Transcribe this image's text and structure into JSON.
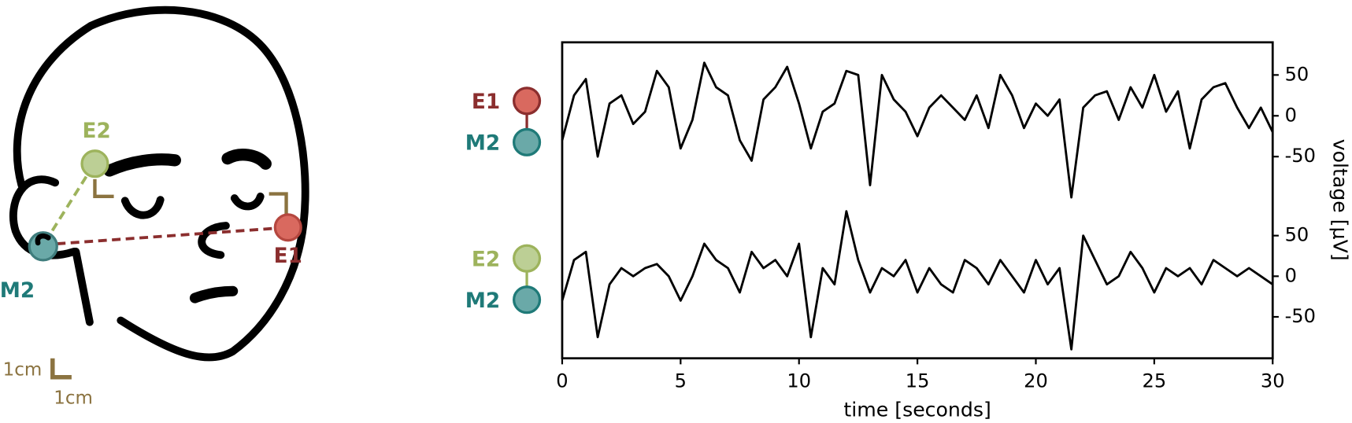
{
  "diagram": {
    "electrodes": [
      "E1",
      "E2",
      "M2"
    ],
    "scale": [
      "1cm",
      "1cm"
    ]
  },
  "chart_data": [
    {
      "type": "line",
      "xlim": [
        0,
        30
      ],
      "ylim": [
        -103,
        90
      ],
      "yticks": [
        50,
        0,
        -50
      ],
      "ylabel": "voltage [μV]",
      "channels": [
        {
          "label": "E1",
          "color": "#d9695f",
          "label_color": "#8b2e2e"
        },
        {
          "label": "M2",
          "color": "#6aa9a8",
          "label_color": "#1f7a78"
        }
      ],
      "link_color": "#8b2e2e",
      "x": [
        0,
        0.5,
        1,
        1.5,
        2,
        2.5,
        3,
        3.5,
        4,
        4.5,
        5,
        5.5,
        6,
        6.5,
        7,
        7.5,
        8,
        8.5,
        9,
        9.5,
        10,
        10.5,
        11,
        11.5,
        12,
        12.5,
        13,
        13.5,
        14,
        14.5,
        15,
        15.5,
        16,
        16.5,
        17,
        17.5,
        18,
        18.5,
        19,
        19.5,
        20,
        20.5,
        21,
        21.5,
        22,
        22.5,
        23,
        23.5,
        24,
        24.5,
        25,
        25.5,
        26,
        26.5,
        27,
        27.5,
        28,
        28.5,
        29,
        29.5,
        30
      ],
      "series": [
        {
          "color": "#000000",
          "values": [
            -30,
            25,
            45,
            -50,
            15,
            25,
            -10,
            5,
            55,
            35,
            -40,
            -5,
            65,
            35,
            25,
            -30,
            -55,
            20,
            35,
            60,
            15,
            -40,
            5,
            15,
            55,
            50,
            -85,
            50,
            20,
            5,
            -25,
            10,
            25,
            10,
            -5,
            25,
            -15,
            50,
            25,
            -15,
            15,
            0,
            20,
            -100,
            10,
            25,
            30,
            -5,
            35,
            10,
            50,
            5,
            30,
            -40,
            20,
            35,
            40,
            10,
            -15,
            10,
            -20
          ]
        }
      ]
    },
    {
      "type": "line",
      "xlim": [
        0,
        30
      ],
      "ylim": [
        -101,
        94
      ],
      "yticks": [
        50,
        0,
        -50
      ],
      "xticks": [
        0,
        5,
        10,
        15,
        20,
        25,
        30
      ],
      "xlabel": "time [seconds]",
      "channels": [
        {
          "label": "E2",
          "color": "#bccf95",
          "label_color": "#9db35c"
        },
        {
          "label": "M2",
          "color": "#6aa9a8",
          "label_color": "#1f7a78"
        }
      ],
      "link_color": "#9db35c",
      "x": [
        0,
        0.5,
        1,
        1.5,
        2,
        2.5,
        3,
        3.5,
        4,
        4.5,
        5,
        5.5,
        6,
        6.5,
        7,
        7.5,
        8,
        8.5,
        9,
        9.5,
        10,
        10.5,
        11,
        11.5,
        12,
        12.5,
        13,
        13.5,
        14,
        14.5,
        15,
        15.5,
        16,
        16.5,
        17,
        17.5,
        18,
        18.5,
        19,
        19.5,
        20,
        20.5,
        21,
        21.5,
        22,
        22.5,
        23,
        23.5,
        24,
        24.5,
        25,
        25.5,
        26,
        26.5,
        27,
        27.5,
        28,
        28.5,
        29,
        29.5,
        30
      ],
      "series": [
        {
          "color": "#000000",
          "values": [
            -30,
            20,
            30,
            -75,
            -10,
            10,
            0,
            10,
            15,
            0,
            -30,
            0,
            40,
            20,
            10,
            -20,
            30,
            10,
            20,
            0,
            40,
            -75,
            10,
            -10,
            80,
            20,
            -20,
            10,
            0,
            20,
            -20,
            10,
            -10,
            -20,
            20,
            10,
            -10,
            20,
            0,
            -20,
            20,
            -10,
            10,
            -90,
            50,
            20,
            -10,
            0,
            30,
            10,
            -20,
            10,
            0,
            10,
            -10,
            20,
            10,
            0,
            10,
            0,
            -10
          ]
        }
      ]
    }
  ]
}
